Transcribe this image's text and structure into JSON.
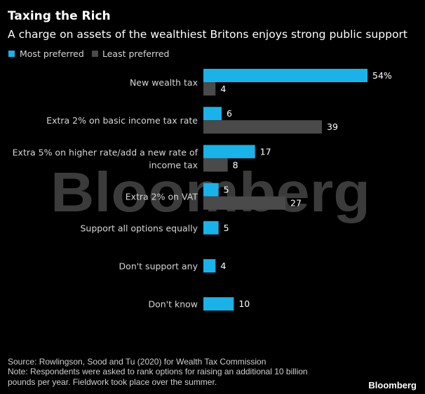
{
  "chart_data": {
    "type": "bar",
    "orientation": "horizontal",
    "title": "Taxing the Rich",
    "subtitle": "A charge on assets of the wealthiest Britons enjoys strong public support",
    "legend_position": "top-left",
    "grid": false,
    "xlim": [
      0,
      54
    ],
    "categories": [
      [
        "New wealth tax"
      ],
      [
        "Extra 2% on basic income tax rate"
      ],
      [
        "Extra 5% on higher rate/add a new rate of",
        "income tax"
      ],
      [
        "Extra 2% on VAT"
      ],
      [
        "Support all options equally"
      ],
      [
        "Don't support any"
      ],
      [
        "Don't know"
      ]
    ],
    "series": [
      {
        "name": "Most preferred",
        "color": "#1ab2e8",
        "values": [
          54,
          6,
          17,
          5,
          5,
          4,
          10
        ],
        "labels": [
          "54%",
          "6",
          "17",
          "5",
          "5",
          "4",
          "10"
        ]
      },
      {
        "name": "Least preferred",
        "color": "#4a4a4a",
        "values": [
          4,
          39,
          8,
          27,
          null,
          null,
          null
        ],
        "labels": [
          "4",
          "39",
          "8",
          "27",
          null,
          null,
          null
        ]
      }
    ]
  },
  "footer": {
    "source": "Source: Rowlingson, Sood and Tu (2020) for Wealth Tax Commission",
    "note_lines": [
      "Note: Respondents were asked to rank options for raising an additional 10 billion",
      "pounds per year. Fieldwork took place over the summer."
    ],
    "brand": "Bloomberg"
  },
  "watermark": "Bloomberg"
}
